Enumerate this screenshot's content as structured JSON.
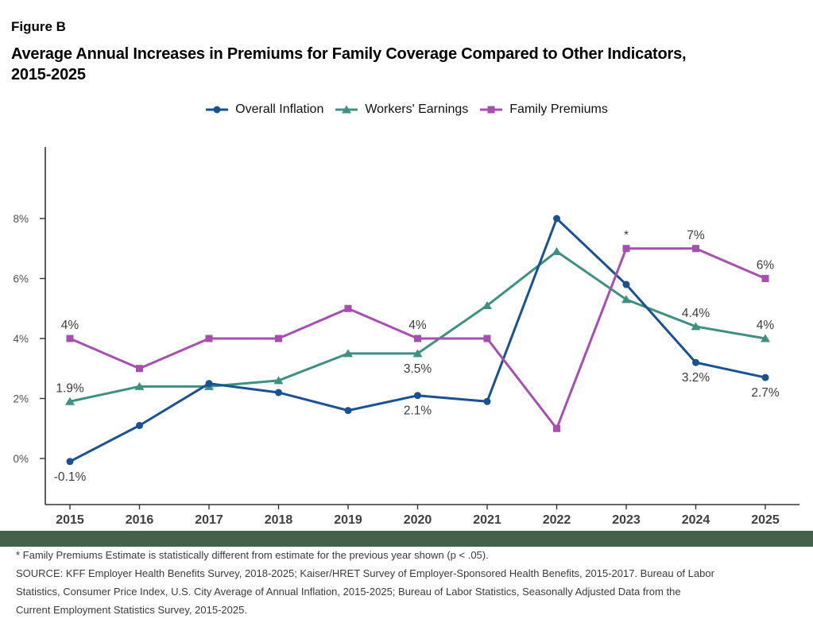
{
  "header": {
    "figure_label": "Figure B",
    "title_line1": "Average Annual Increases in Premiums for Family Coverage Compared to Other Indicators,",
    "title_line2": "2015-2025"
  },
  "colors": {
    "inflation_blue": "#1a5291",
    "earnings_teal": "#3d9180",
    "premiums_purple": "#a74fb0",
    "divider_green": "#44624b",
    "axis": "#333333"
  },
  "chart_data": {
    "type": "line",
    "title": "Average Annual Increases in Premiums for Family Coverage Compared to Other Indicators, 2015-2025",
    "x": [
      2015,
      2016,
      2017,
      2018,
      2019,
      2020,
      2021,
      2022,
      2023,
      2024,
      2025
    ],
    "ylim": [
      -1.5,
      10.4
    ],
    "yticks": [
      0,
      2,
      4,
      6,
      8
    ],
    "ytick_labels": [
      "0%",
      "2%",
      "4%",
      "6%",
      "8%"
    ],
    "grid": false,
    "legend_position": "top-center",
    "series": [
      {
        "name": "Overall Inflation",
        "marker": "circle",
        "color": "#1a5291",
        "values": [
          -0.1,
          1.1,
          2.5,
          2.2,
          1.6,
          2.1,
          1.9,
          8.0,
          5.8,
          3.2,
          2.7
        ]
      },
      {
        "name": "Workers' Earnings",
        "marker": "triangle",
        "color": "#3d9180",
        "values": [
          1.9,
          2.4,
          2.4,
          2.6,
          3.5,
          3.5,
          5.1,
          6.9,
          5.3,
          4.4,
          4.0
        ]
      },
      {
        "name": "Family Premiums",
        "marker": "square",
        "color": "#a74fb0",
        "values": [
          4,
          3,
          4,
          4,
          5,
          4,
          4,
          1,
          7,
          7,
          6
        ]
      }
    ],
    "draw_order": [
      1,
      0,
      2
    ],
    "point_labels": [
      {
        "series": 0,
        "x": 2015,
        "text": "-0.1%",
        "placement": "below"
      },
      {
        "series": 0,
        "x": 2020,
        "text": "2.1%",
        "placement": "below"
      },
      {
        "series": 0,
        "x": 2024,
        "text": "3.2%",
        "placement": "below"
      },
      {
        "series": 0,
        "x": 2025,
        "text": "2.7%",
        "placement": "below"
      },
      {
        "series": 1,
        "x": 2015,
        "text": "1.9%",
        "placement": "above"
      },
      {
        "series": 1,
        "x": 2020,
        "text": "3.5%",
        "placement": "below"
      },
      {
        "series": 1,
        "x": 2024,
        "text": "4.4%",
        "placement": "above"
      },
      {
        "series": 1,
        "x": 2025,
        "text": "4%",
        "placement": "above"
      },
      {
        "series": 2,
        "x": 2015,
        "text": "4%",
        "placement": "above"
      },
      {
        "series": 2,
        "x": 2020,
        "text": "4%",
        "placement": "above"
      },
      {
        "series": 2,
        "x": 2023,
        "text": "*",
        "placement": "above"
      },
      {
        "series": 2,
        "x": 2024,
        "text": "7%",
        "placement": "above"
      },
      {
        "series": 2,
        "x": 2025,
        "text": "6%",
        "placement": "above"
      }
    ]
  },
  "footnotes": {
    "lines": [
      "* Family Premiums Estimate is statistically different from estimate for the previous year shown (p < .05).",
      "SOURCE: KFF Employer Health Benefits Survey, 2018-2025; Kaiser/HRET Survey of Employer-Sponsored Health Benefits, 2015-2017. Bureau of Labor",
      "Statistics, Consumer Price Index, U.S. City Average of Annual Inflation, 2015-2025; Bureau of Labor Statistics, Seasonally Adjusted Data from the",
      "Current Employment Statistics Survey, 2015-2025."
    ]
  }
}
